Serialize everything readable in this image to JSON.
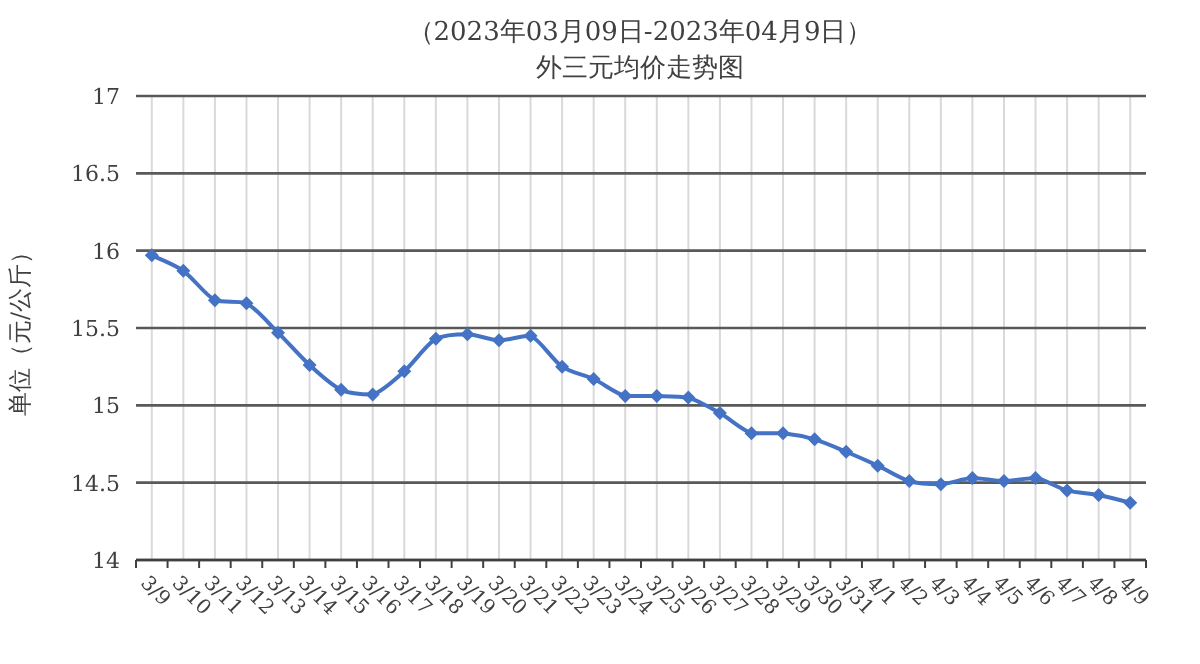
{
  "chart_data": {
    "type": "line",
    "title": "（2023年03月09日-2023年04月9日）",
    "subtitle": "外三元均价走势图",
    "ylabel": "单位（元/公斤）",
    "categories": [
      "3/9",
      "3/10",
      "3/11",
      "3/12",
      "3/13",
      "3/14",
      "3/15",
      "3/16",
      "3/17",
      "3/18",
      "3/19",
      "3/20",
      "3/21",
      "3/22",
      "3/23",
      "3/24",
      "3/25",
      "3/26",
      "3/27",
      "3/28",
      "3/29",
      "3/30",
      "3/31",
      "4/1",
      "4/2",
      "4/3",
      "4/4",
      "4/5",
      "4/6",
      "4/7",
      "4/8",
      "4/9"
    ],
    "series": [
      {
        "color": "#4472c4",
        "values": [
          15.97,
          15.87,
          15.68,
          15.66,
          15.47,
          15.26,
          15.1,
          15.07,
          15.22,
          15.43,
          15.46,
          15.42,
          15.45,
          15.25,
          15.17,
          15.06,
          15.06,
          15.05,
          14.95,
          14.82,
          14.82,
          14.78,
          14.7,
          14.61,
          14.51,
          14.49,
          14.53,
          14.51,
          14.53,
          14.45,
          14.42,
          14.37
        ]
      }
    ],
    "ylim": [
      14,
      17
    ],
    "yticks": [
      14,
      14.5,
      15,
      15.5,
      16,
      16.5,
      17
    ],
    "grid": true,
    "marker": "diamond",
    "line_style": "solid"
  }
}
